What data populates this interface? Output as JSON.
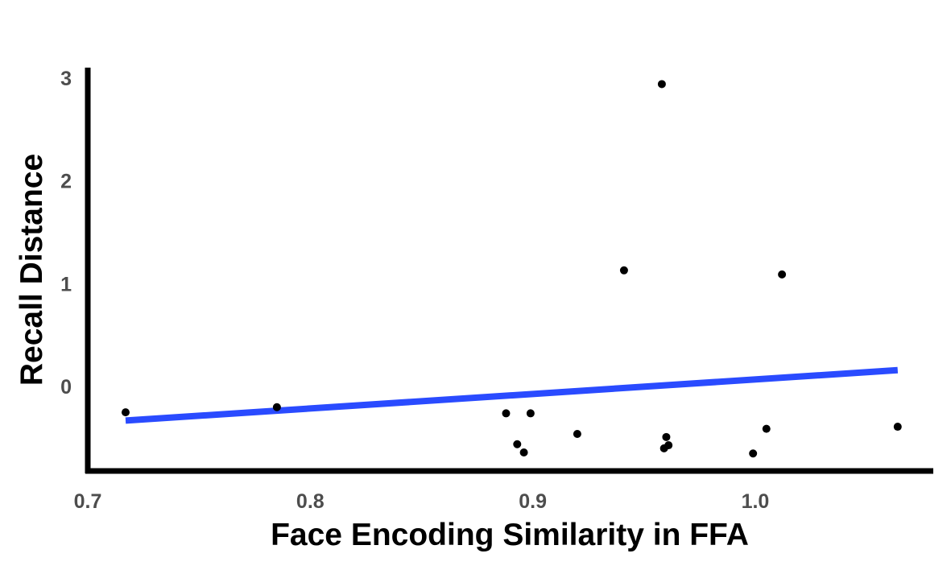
{
  "chart_data": {
    "type": "scatter",
    "xlabel": "Face Encoding Similarity in FFA",
    "ylabel": "Recall Distance",
    "xlim": [
      0.7,
      1.08
    ],
    "ylim": [
      -0.82,
      3.1
    ],
    "x_ticks": [
      {
        "value": 0.7,
        "label": "0.7"
      },
      {
        "value": 0.8,
        "label": "0.8"
      },
      {
        "value": 0.9,
        "label": "0.9"
      },
      {
        "value": 1.0,
        "label": "1.0"
      }
    ],
    "y_ticks": [
      {
        "value": 0,
        "label": "0"
      },
      {
        "value": 1,
        "label": "1"
      },
      {
        "value": 2,
        "label": "2"
      },
      {
        "value": 3,
        "label": "3"
      }
    ],
    "grid": false,
    "points": [
      {
        "x": 0.717,
        "y": -0.25
      },
      {
        "x": 0.785,
        "y": -0.2
      },
      {
        "x": 0.888,
        "y": -0.26
      },
      {
        "x": 0.893,
        "y": -0.56
      },
      {
        "x": 0.896,
        "y": -0.64
      },
      {
        "x": 0.899,
        "y": -0.26
      },
      {
        "x": 0.92,
        "y": -0.46
      },
      {
        "x": 0.941,
        "y": 1.13
      },
      {
        "x": 0.958,
        "y": 2.94
      },
      {
        "x": 0.959,
        "y": -0.6
      },
      {
        "x": 0.96,
        "y": -0.49
      },
      {
        "x": 0.961,
        "y": -0.57
      },
      {
        "x": 0.999,
        "y": -0.65
      },
      {
        "x": 1.005,
        "y": -0.41
      },
      {
        "x": 1.012,
        "y": 1.09
      },
      {
        "x": 1.064,
        "y": -0.39
      }
    ],
    "fit_line": {
      "x": [
        0.717,
        1.064
      ],
      "y": [
        -0.33,
        0.16
      ],
      "color": "#2a4bff"
    },
    "point_color": "#000000"
  }
}
